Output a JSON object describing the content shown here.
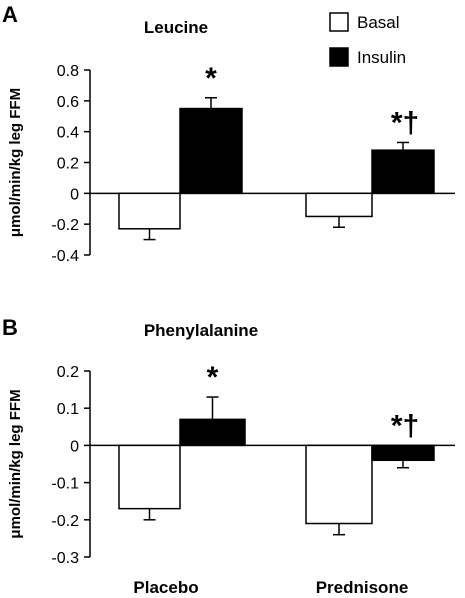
{
  "chart_data": [
    {
      "type": "bar",
      "panel_letter": "A",
      "title": "Leucine",
      "ylabel": "μmol/min/kg leg FFM",
      "xlabel": "",
      "ylim": [
        -0.4,
        0.8
      ],
      "yticks": [
        -0.4,
        -0.2,
        0,
        0.2,
        0.4,
        0.6,
        0.8
      ],
      "ytick_labels": [
        "-0.4",
        "-0.2",
        "0",
        "0.2",
        "0.4",
        "0.6",
        "0.8"
      ],
      "categories": [
        "Placebo",
        "Prednisone"
      ],
      "series": [
        {
          "name": "Basal",
          "color": "#ffffff",
          "values": [
            -0.23,
            -0.15
          ],
          "errors": [
            0.07,
            0.07
          ]
        },
        {
          "name": "Insulin",
          "color": "#000000",
          "values": [
            0.55,
            0.28
          ],
          "errors": [
            0.07,
            0.05
          ]
        }
      ],
      "annotations": [
        {
          "text": "*",
          "category": 0,
          "series": 1
        },
        {
          "text": "*†",
          "category": 1,
          "series": 1
        }
      ],
      "legend": {
        "placement": "top-right",
        "entries": [
          "Basal",
          "Insulin"
        ]
      }
    },
    {
      "type": "bar",
      "panel_letter": "B",
      "title": "Phenylalanine",
      "ylabel": "μmol/min/kg leg FFM",
      "xlabel": "",
      "ylim": [
        -0.3,
        0.2
      ],
      "yticks": [
        -0.3,
        -0.2,
        -0.1,
        0,
        0.1,
        0.2
      ],
      "ytick_labels": [
        "-0.3",
        "-0.2",
        "-0.1",
        "0",
        "0.1",
        "0.2"
      ],
      "categories": [
        "Placebo",
        "Prednisone"
      ],
      "series": [
        {
          "name": "Basal",
          "color": "#ffffff",
          "values": [
            -0.17,
            -0.21
          ],
          "errors": [
            0.03,
            0.03
          ]
        },
        {
          "name": "Insulin",
          "color": "#000000",
          "values": [
            0.07,
            -0.04
          ],
          "errors": [
            0.06,
            0.02
          ]
        }
      ],
      "annotations": [
        {
          "text": "*",
          "category": 0,
          "series": 1
        },
        {
          "text": "*†",
          "category": 1,
          "series": 1
        }
      ]
    }
  ]
}
